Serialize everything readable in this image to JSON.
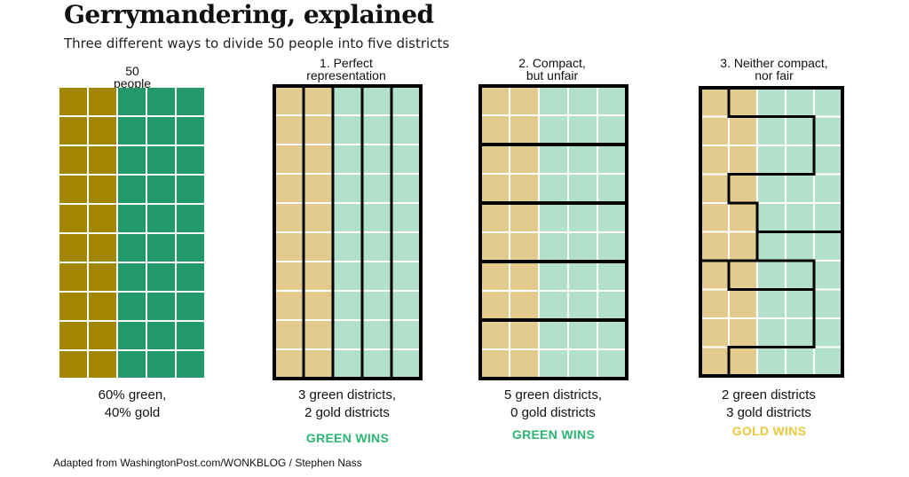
{
  "title": "Gerrymandering, explained",
  "subtitle": "Three different ways to divide 50 people into five districts",
  "colors": {
    "gold_dark": "#a38600",
    "green_dark": "#22996a",
    "gold_light": "#e2cb8c",
    "green_light": "#b1e0cb",
    "border": "#000000",
    "green_text": "#2bb573",
    "gold_text": "#ecc840"
  },
  "grid_layout": {
    "rows": 10,
    "cols": 5,
    "gold_cols": 2,
    "population": 50
  },
  "panels": [
    {
      "id": "population",
      "label_lines": [
        "50",
        "people"
      ],
      "caption_lines": [
        "60% green,",
        "40% gold"
      ],
      "verdict": "",
      "verdict_color": ""
    },
    {
      "id": "perfect",
      "label_lines": [
        "1. Perfect",
        "representation"
      ],
      "caption_lines": [
        "3 green districts,",
        "2 gold districts"
      ],
      "verdict": "GREEN WINS",
      "verdict_color": "green",
      "district_split": "vertical",
      "districts_total": 5,
      "districts_green": 3,
      "districts_gold": 2
    },
    {
      "id": "compact",
      "label_lines": [
        "2. Compact,",
        "but unfair"
      ],
      "caption_lines": [
        "5 green districts,",
        "0 gold districts"
      ],
      "verdict": "GREEN WINS",
      "verdict_color": "green",
      "district_split": "horizontal",
      "districts_total": 5,
      "districts_green": 5,
      "districts_gold": 0
    },
    {
      "id": "gerrymandered",
      "label_lines": [
        "3. Neither compact,",
        "nor fair"
      ],
      "caption_lines": [
        "2 green districts",
        "3 gold districts"
      ],
      "verdict": "GOLD WINS",
      "verdict_color": "gold",
      "district_split": "interlocking",
      "districts_total": 5,
      "districts_green": 2,
      "districts_gold": 3
    }
  ],
  "credit": "Adapted from WashingtonPost.com/WONKBLOG / Stephen Nass"
}
